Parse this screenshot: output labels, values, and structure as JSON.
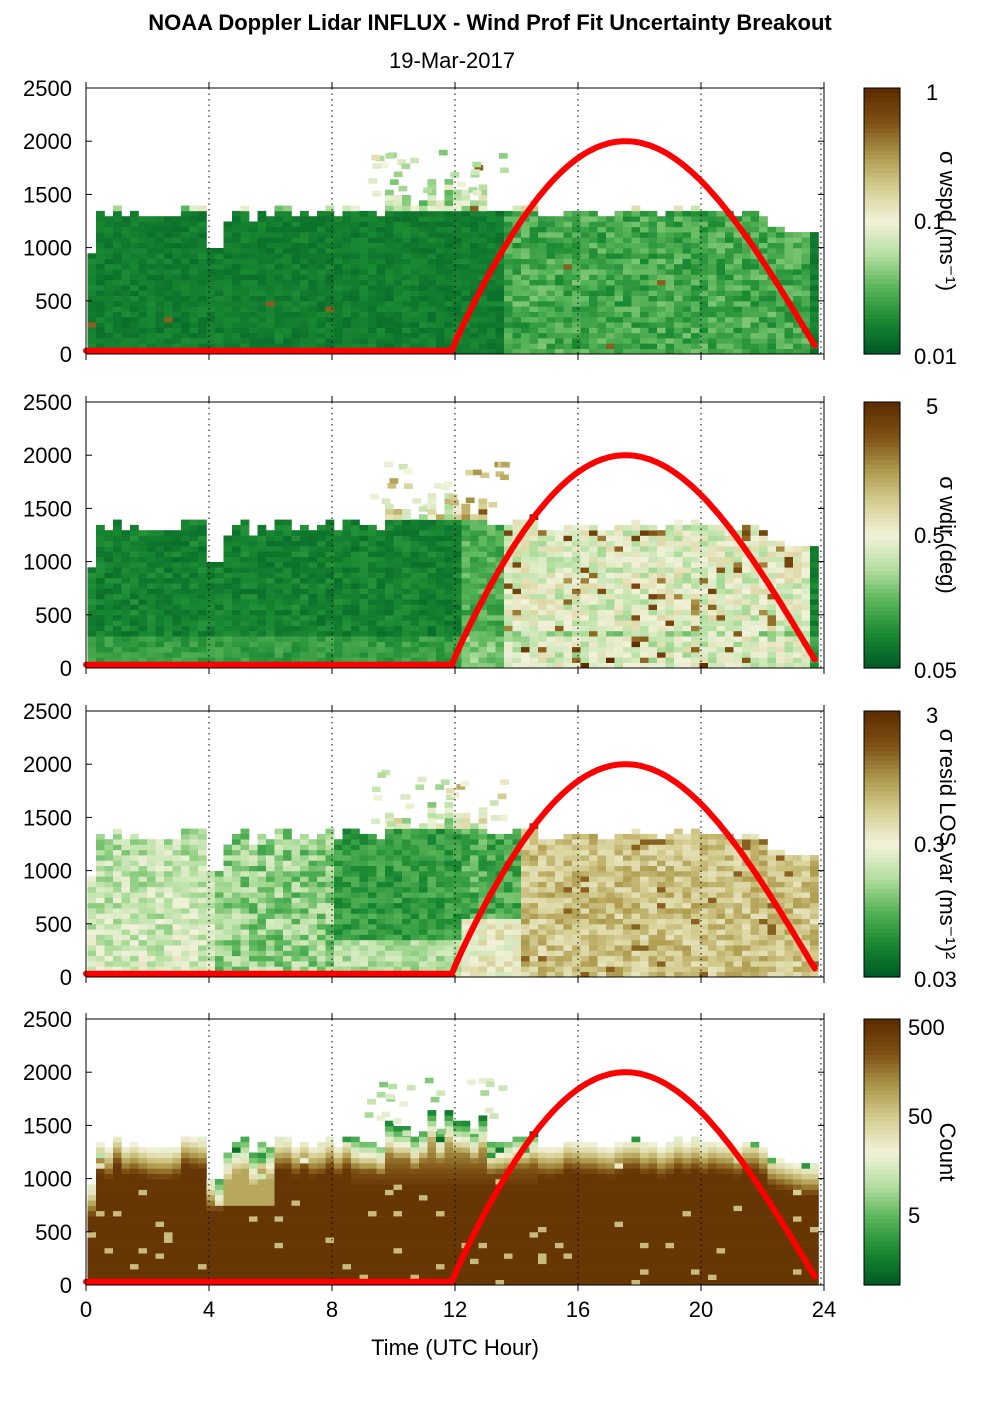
{
  "title": "NOAA Doppler Lidar INFLUX - Wind Prof Fit Uncertainty Breakout",
  "subtitle": "19-Mar-2017",
  "chart_data": [
    {
      "type": "heatmap",
      "colorbar_label": "σ wspd (ms⁻¹)",
      "colorbar_ticks": [
        "1",
        "0.1",
        "0.01"
      ],
      "colorbar_scale": "log",
      "field": "wspd",
      "x_ticks": [
        0,
        4,
        8,
        12,
        16,
        20,
        24
      ],
      "y_ticks": [
        0,
        500,
        1000,
        1500,
        2000,
        2500
      ],
      "xlim": [
        0,
        24
      ],
      "ylim": [
        0,
        2500
      ],
      "grid": "vertical dotted at 4-hour ticks"
    },
    {
      "type": "heatmap",
      "colorbar_label": "σ wdir (deg)",
      "colorbar_ticks": [
        "5",
        "0.5",
        "0.05"
      ],
      "colorbar_scale": "log",
      "field": "wdir",
      "x_ticks": [
        0,
        4,
        8,
        12,
        16,
        20,
        24
      ],
      "y_ticks": [
        0,
        500,
        1000,
        1500,
        2000,
        2500
      ],
      "xlim": [
        0,
        24
      ],
      "ylim": [
        0,
        2500
      ],
      "grid": "vertical dotted at 4-hour ticks"
    },
    {
      "type": "heatmap",
      "colorbar_label": "σ resid LOS var (ms⁻¹)²",
      "colorbar_ticks": [
        "3",
        "0.3",
        "0.03"
      ],
      "colorbar_scale": "log",
      "field": "resid",
      "x_ticks": [
        0,
        4,
        8,
        12,
        16,
        20,
        24
      ],
      "y_ticks": [
        0,
        500,
        1000,
        1500,
        2000,
        2500
      ],
      "xlim": [
        0,
        24
      ],
      "ylim": [
        0,
        2500
      ],
      "grid": "vertical dotted at 4-hour ticks"
    },
    {
      "type": "heatmap",
      "colorbar_label": "Count",
      "colorbar_ticks": [
        "500",
        "50",
        "5"
      ],
      "colorbar_scale": "log",
      "field": "count",
      "x_ticks": [
        0,
        4,
        8,
        12,
        16,
        20,
        24
      ],
      "y_ticks": [
        0,
        500,
        1000,
        1500,
        2000,
        2500
      ],
      "xlim": [
        0,
        24
      ],
      "ylim": [
        0,
        2500
      ],
      "grid": "vertical dotted at 4-hour ticks",
      "xlabel": "Time (UTC Hour)"
    }
  ],
  "overlay_curve": {
    "color": "#ff0000",
    "points": [
      [
        0,
        30
      ],
      [
        11.9,
        30
      ],
      [
        12.5,
        200
      ],
      [
        14,
        900
      ],
      [
        15.5,
        1550
      ],
      [
        17,
        1920
      ],
      [
        17.9,
        2000
      ],
      [
        19,
        1930
      ],
      [
        20.5,
        1650
      ],
      [
        22,
        1050
      ],
      [
        23.2,
        380
      ],
      [
        23.8,
        80
      ]
    ]
  },
  "colormap": [
    "#005c26",
    "#1a8a32",
    "#5ab55a",
    "#b6e0a2",
    "#f2f2da",
    "#d6cf94",
    "#ad9a4c",
    "#7f5214",
    "#5e2e00"
  ]
}
